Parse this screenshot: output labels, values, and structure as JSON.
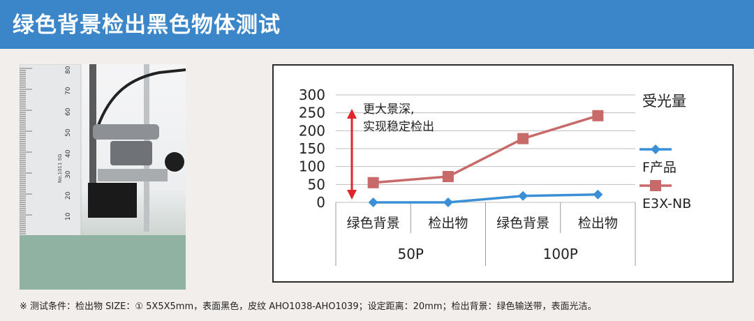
{
  "header": {
    "title": "绿色背景检出黑色物体测试"
  },
  "photo": {
    "ruler_marks": [
      "80",
      "70",
      "60",
      "50",
      "40",
      "30",
      "20",
      "10"
    ],
    "ruler_label": "No.1011 SG"
  },
  "chart_data": {
    "type": "line",
    "title": "",
    "ylabel": "受光量",
    "ylim": [
      0,
      300
    ],
    "yticks": [
      "0",
      "50",
      "100",
      "150",
      "200",
      "250",
      "300"
    ],
    "categories": [
      "绿色背景",
      "检出物",
      "绿色背景",
      "检出物"
    ],
    "groups": [
      "50P",
      "100P"
    ],
    "series": [
      {
        "name": "F产品",
        "color": "#3b8fd6",
        "values": [
          0,
          0,
          18,
          22
        ]
      },
      {
        "name": "E3X-NB",
        "color": "#c86a6a",
        "values": [
          55,
          72,
          178,
          242
        ]
      }
    ],
    "annotation": {
      "line1": "更大景深,",
      "line2": "实现稳定检出"
    },
    "grid": true,
    "legend": "right"
  },
  "footnote": "※ 测试条件：检出物 SIZE：① 5X5X5mm，表面黑色，皮纹 AHO1038-AHO1039；设定距离：20mm；检出背景：绿色输送带，表面光洁。"
}
